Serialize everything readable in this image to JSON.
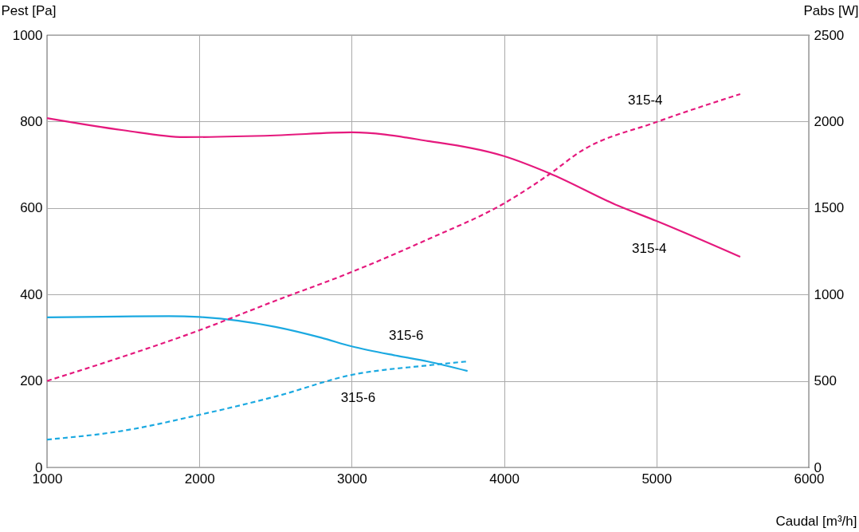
{
  "chart_data": {
    "type": "line",
    "xlabel": "Caudal [m³/h]",
    "ylabel": "Pest [Pa]",
    "y2label": "Pabs [W]",
    "xlim": [
      1000,
      6000
    ],
    "xticks": [
      1000,
      2000,
      3000,
      4000,
      5000,
      6000
    ],
    "ylim": [
      0,
      1000
    ],
    "yticks": [
      0,
      200,
      400,
      600,
      800,
      1000
    ],
    "y2lim": [
      0,
      2500
    ],
    "y2ticks": [
      0,
      500,
      1000,
      1500,
      2000,
      2500
    ],
    "grid": true,
    "marker": "none",
    "series": [
      {
        "name": "315-4",
        "color": "#e5197d",
        "line_style": "solid",
        "x": [
          1000,
          1500,
          1900,
          2500,
          3000,
          3500,
          4000,
          4300,
          4750,
          5000,
          5550
        ],
        "values": [
          808,
          780,
          764,
          768,
          775,
          755,
          720,
          680,
          605,
          570,
          487
        ]
      },
      {
        "name": "315-4",
        "color": "#e5197d",
        "line_style": "dashed",
        "axis": "y2",
        "x": [
          1000,
          1500,
          2000,
          2500,
          3000,
          3500,
          4000,
          4300,
          4500,
          5000,
          5550
        ],
        "values": [
          500,
          641,
          793,
          964,
          1130,
          1319,
          1527,
          1697,
          1826,
          1997,
          2159
        ]
      },
      {
        "name": "315-6",
        "color": "#1ba9e1",
        "line_style": "solid",
        "x": [
          1000,
          1800,
          2000,
          2500,
          2800,
          3000,
          3300,
          3500,
          3760
        ],
        "values": [
          347,
          350,
          348,
          325,
          300,
          280,
          258,
          245,
          223
        ]
      },
      {
        "name": "315-6",
        "color": "#1ba9e1",
        "line_style": "dashed",
        "axis": "y2",
        "x": [
          1000,
          1500,
          2000,
          2500,
          3000,
          3500,
          3760
        ],
        "values": [
          161,
          212,
          304,
          410,
          535,
          590,
          613
        ]
      }
    ]
  }
}
